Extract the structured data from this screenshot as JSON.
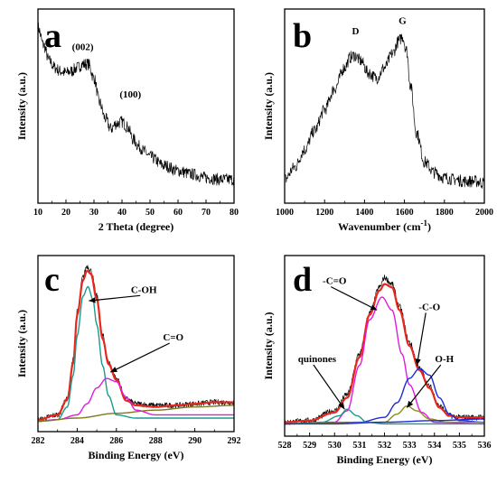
{
  "chart_data": [
    {
      "panel": "a",
      "type": "line",
      "xlabel": "2 Theta (degree)",
      "ylabel": "Intensity (a.u.)",
      "xlim": [
        10,
        80
      ],
      "x_ticks": [
        10,
        20,
        30,
        40,
        50,
        60,
        70,
        80
      ],
      "ylim": [
        0,
        1
      ],
      "y_ticks_shown": false,
      "annotations": [
        {
          "text": "(002)",
          "x": 26,
          "y": 0.82
        },
        {
          "text": "(100)",
          "x": 43,
          "y": 0.55
        }
      ],
      "series": [
        {
          "color": "#000000",
          "noisy": true,
          "x": [
            10,
            12,
            14,
            16,
            18,
            20,
            22,
            24,
            26,
            28,
            30,
            32,
            34,
            36,
            38,
            40,
            42,
            44,
            46,
            48,
            50,
            55,
            60,
            65,
            70,
            75,
            80
          ],
          "y": [
            0.95,
            0.85,
            0.76,
            0.72,
            0.7,
            0.69,
            0.7,
            0.72,
            0.74,
            0.74,
            0.66,
            0.52,
            0.43,
            0.37,
            0.4,
            0.41,
            0.38,
            0.31,
            0.27,
            0.24,
            0.21,
            0.16,
            0.13,
            0.11,
            0.09,
            0.08,
            0.08
          ]
        }
      ]
    },
    {
      "panel": "b",
      "type": "line",
      "xlabel": "Wavenumber (cm",
      "xlabel_sup": "-1",
      "xlabel_close": ")",
      "ylabel": "Intensity (a.u.)",
      "xlim": [
        1000,
        2000
      ],
      "x_ticks": [
        1000,
        1200,
        1400,
        1600,
        1800,
        2000
      ],
      "ylim": [
        0,
        1
      ],
      "y_ticks_shown": false,
      "annotations": [
        {
          "text": "D",
          "x": 1355,
          "y": 0.91
        },
        {
          "text": "G",
          "x": 1590,
          "y": 0.97
        }
      ],
      "series": [
        {
          "color": "#000000",
          "noisy": true,
          "x": [
            1000,
            1050,
            1100,
            1150,
            1200,
            1250,
            1300,
            1330,
            1350,
            1380,
            1420,
            1460,
            1500,
            1540,
            1570,
            1590,
            1610,
            1630,
            1660,
            1700,
            1750,
            1800,
            1850,
            1900,
            1950,
            2000
          ],
          "y": [
            0.08,
            0.15,
            0.25,
            0.36,
            0.48,
            0.6,
            0.72,
            0.78,
            0.79,
            0.76,
            0.69,
            0.66,
            0.72,
            0.8,
            0.87,
            0.9,
            0.82,
            0.62,
            0.35,
            0.18,
            0.12,
            0.09,
            0.08,
            0.07,
            0.07,
            0.06
          ]
        }
      ]
    },
    {
      "panel": "c",
      "type": "line",
      "xlabel": "Binding Energy (eV)",
      "ylabel": "Intensity (a.u.)",
      "xlim": [
        282,
        292
      ],
      "x_ticks": [
        282,
        284,
        286,
        288,
        290,
        292
      ],
      "ylim": [
        0,
        1
      ],
      "y_ticks_shown": false,
      "annotations": [
        {
          "text": "C-OH",
          "x": 287.4,
          "y": 0.82,
          "arrow_to": [
            284.6,
            0.77
          ]
        },
        {
          "text": "C=O",
          "x": 288.9,
          "y": 0.52,
          "arrow_to": [
            285.7,
            0.32
          ]
        }
      ],
      "series": [
        {
          "name": "raw",
          "color": "#000000",
          "noisy": true,
          "x": [
            282,
            283,
            283.5,
            283.8,
            284.0,
            284.3,
            284.5,
            284.7,
            285.0,
            285.3,
            285.6,
            286.0,
            286.5,
            287,
            288,
            289,
            290,
            291,
            292
          ],
          "y": [
            0.02,
            0.05,
            0.15,
            0.4,
            0.7,
            0.92,
            0.99,
            0.96,
            0.8,
            0.55,
            0.38,
            0.28,
            0.15,
            0.12,
            0.11,
            0.11,
            0.12,
            0.13,
            0.13
          ]
        },
        {
          "name": "envelope",
          "color": "#e8281e",
          "x": [
            282,
            283,
            283.5,
            283.8,
            284.0,
            284.3,
            284.5,
            284.7,
            285.0,
            285.3,
            285.6,
            286.0,
            286.5,
            287,
            288,
            289,
            290,
            291,
            292
          ],
          "y": [
            0.02,
            0.05,
            0.15,
            0.38,
            0.68,
            0.9,
            0.96,
            0.94,
            0.78,
            0.53,
            0.37,
            0.27,
            0.14,
            0.11,
            0.1,
            0.11,
            0.12,
            0.13,
            0.13
          ]
        },
        {
          "name": "C-OH component",
          "color": "#1a9a8c",
          "x": [
            282,
            283,
            283.5,
            283.8,
            284.0,
            284.3,
            284.55,
            284.8,
            285.0,
            285.3,
            285.6,
            286.0,
            287,
            288,
            292
          ],
          "y": [
            0.01,
            0.02,
            0.1,
            0.3,
            0.55,
            0.8,
            0.86,
            0.78,
            0.62,
            0.36,
            0.17,
            0.05,
            0.03,
            0.03,
            0.03
          ]
        },
        {
          "name": "C=O component",
          "color": "#e21adf",
          "x": [
            282,
            283,
            284,
            284.5,
            285.0,
            285.5,
            286.0,
            286.5,
            287,
            288,
            289,
            290,
            292
          ],
          "y": [
            0.01,
            0.02,
            0.05,
            0.12,
            0.22,
            0.28,
            0.26,
            0.16,
            0.08,
            0.05,
            0.05,
            0.05,
            0.05
          ]
        },
        {
          "name": "baseline",
          "color": "#7a7a1e",
          "x": [
            282,
            284,
            286,
            288,
            290,
            292
          ],
          "y": [
            0.01,
            0.03,
            0.06,
            0.08,
            0.1,
            0.11
          ]
        }
      ]
    },
    {
      "panel": "d",
      "type": "line",
      "xlabel": "Binding Energy (eV)",
      "ylabel": "Intensity (a.u.)",
      "xlim": [
        528,
        536
      ],
      "x_ticks": [
        528,
        529,
        530,
        531,
        532,
        533,
        534,
        535,
        536
      ],
      "ylim": [
        0,
        1
      ],
      "y_ticks_shown": false,
      "annotations": [
        {
          "text": "-C=O",
          "x": 530.0,
          "y": 0.88,
          "arrow_to": [
            531.7,
            0.72
          ]
        },
        {
          "text": "-C-O",
          "x": 533.8,
          "y": 0.72,
          "arrow_to": [
            533.3,
            0.38
          ]
        },
        {
          "text": "quinones",
          "x": 529.3,
          "y": 0.4,
          "arrow_to": [
            530.4,
            0.11
          ]
        },
        {
          "text": "O-H",
          "x": 534.4,
          "y": 0.4,
          "arrow_to": [
            532.9,
            0.12
          ]
        }
      ],
      "series": [
        {
          "name": "raw",
          "color": "#000000",
          "noisy": true,
          "x": [
            528,
            529,
            530,
            530.5,
            531.0,
            531.4,
            531.8,
            532.0,
            532.3,
            532.6,
            533.0,
            533.4,
            533.8,
            534.2,
            534.6,
            535,
            536
          ],
          "y": [
            0.03,
            0.04,
            0.1,
            0.2,
            0.45,
            0.7,
            0.86,
            0.92,
            0.88,
            0.74,
            0.52,
            0.36,
            0.25,
            0.13,
            0.07,
            0.06,
            0.06
          ]
        },
        {
          "name": "envelope",
          "color": "#e8281e",
          "x": [
            528,
            529,
            530,
            530.5,
            531.0,
            531.4,
            531.8,
            532.0,
            532.3,
            532.6,
            533.0,
            533.4,
            533.8,
            534.2,
            534.6,
            535,
            536
          ],
          "y": [
            0.03,
            0.04,
            0.09,
            0.18,
            0.43,
            0.69,
            0.84,
            0.88,
            0.86,
            0.72,
            0.5,
            0.35,
            0.24,
            0.12,
            0.07,
            0.06,
            0.06
          ]
        },
        {
          "name": "-C=O component",
          "color": "#e21adf",
          "x": [
            528,
            530,
            530.5,
            531.0,
            531.4,
            531.9,
            532.3,
            532.7,
            533.0,
            533.5,
            534,
            536
          ],
          "y": [
            0.02,
            0.03,
            0.1,
            0.38,
            0.66,
            0.8,
            0.72,
            0.45,
            0.26,
            0.09,
            0.03,
            0.02
          ]
        },
        {
          "name": "-C-O component",
          "color": "#1f2bd6",
          "x": [
            528,
            531,
            532,
            532.5,
            533.0,
            533.4,
            533.8,
            534.2,
            534.6,
            535,
            536
          ],
          "y": [
            0.02,
            0.03,
            0.06,
            0.15,
            0.3,
            0.36,
            0.32,
            0.18,
            0.08,
            0.04,
            0.03
          ]
        },
        {
          "name": "quinones component",
          "color": "#1a9a8c",
          "x": [
            528,
            529.5,
            530.2,
            530.5,
            530.9,
            531.3,
            532,
            536
          ],
          "y": [
            0.02,
            0.03,
            0.07,
            0.11,
            0.07,
            0.03,
            0.02,
            0.02
          ]
        },
        {
          "name": "O-H component",
          "color": "#8c8c1e",
          "x": [
            528,
            532,
            532.5,
            532.9,
            533.3,
            533.8,
            534.5,
            536
          ],
          "y": [
            0.02,
            0.03,
            0.08,
            0.13,
            0.1,
            0.05,
            0.03,
            0.03
          ]
        },
        {
          "name": "baseline",
          "color": "#1f2bd6",
          "x": [
            528,
            530,
            532,
            534,
            536
          ],
          "y": [
            0.02,
            0.02,
            0.03,
            0.04,
            0.05
          ]
        }
      ]
    }
  ]
}
